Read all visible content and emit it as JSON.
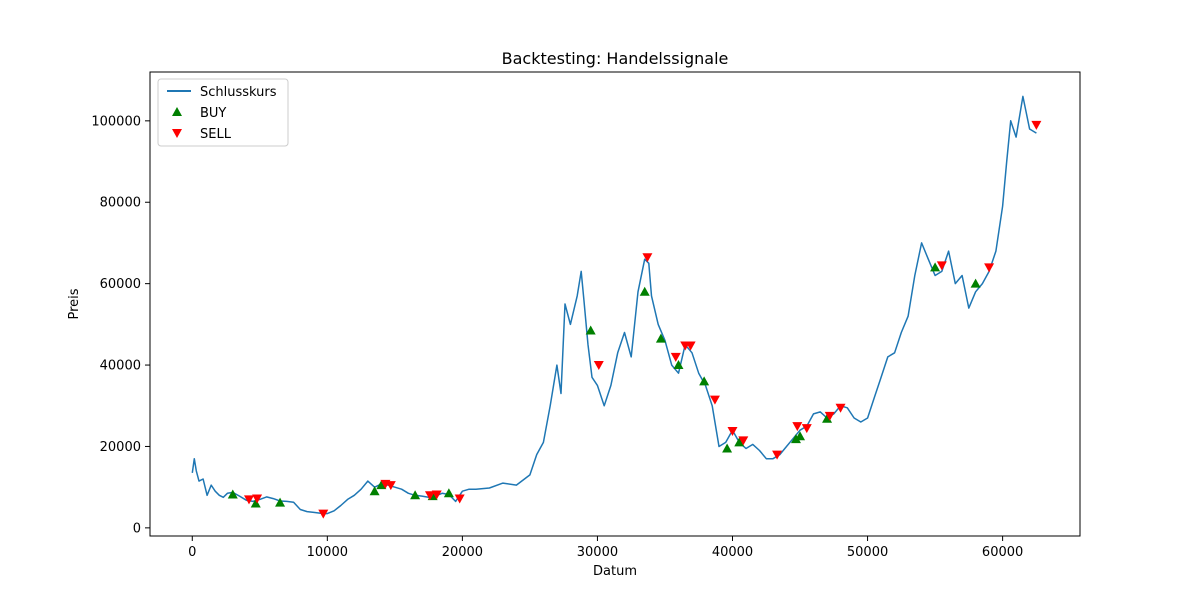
{
  "chart_data": {
    "type": "line",
    "title": "Backtesting: Handelssignale",
    "xlabel": "Datum",
    "ylabel": "Preis",
    "xlim": [
      -3130,
      65730
    ],
    "ylim": [
      -2000,
      112000
    ],
    "xticks": [
      0,
      10000,
      20000,
      30000,
      40000,
      50000,
      60000
    ],
    "yticks": [
      0,
      20000,
      40000,
      60000,
      80000,
      100000
    ],
    "grid": false,
    "legend": "top-left",
    "colors": {
      "line": "#1f77b4",
      "buy": "#008000",
      "sell": "#ff0000"
    },
    "series": [
      {
        "name": "Schlusskurs",
        "kind": "line",
        "points": [
          [
            0,
            13500
          ],
          [
            150,
            17000
          ],
          [
            300,
            14000
          ],
          [
            500,
            11500
          ],
          [
            800,
            12000
          ],
          [
            1100,
            8000
          ],
          [
            1400,
            10500
          ],
          [
            1700,
            9000
          ],
          [
            2000,
            8000
          ],
          [
            2300,
            7500
          ],
          [
            2600,
            8500
          ],
          [
            3000,
            8700
          ],
          [
            3500,
            7800
          ],
          [
            4000,
            6800
          ],
          [
            4500,
            6500
          ],
          [
            5000,
            7000
          ],
          [
            5500,
            7600
          ],
          [
            6000,
            7200
          ],
          [
            6500,
            6600
          ],
          [
            7000,
            6500
          ],
          [
            7500,
            6300
          ],
          [
            8000,
            4500
          ],
          [
            8500,
            4000
          ],
          [
            9000,
            3800
          ],
          [
            9500,
            3600
          ],
          [
            10000,
            3500
          ],
          [
            10500,
            4200
          ],
          [
            11000,
            5500
          ],
          [
            11500,
            7000
          ],
          [
            12000,
            8000
          ],
          [
            12500,
            9500
          ],
          [
            13000,
            11500
          ],
          [
            13500,
            10000
          ],
          [
            14000,
            10800
          ],
          [
            14500,
            10500
          ],
          [
            15000,
            10000
          ],
          [
            15500,
            9500
          ],
          [
            16000,
            8500
          ],
          [
            16500,
            8000
          ],
          [
            17000,
            7800
          ],
          [
            17500,
            7500
          ],
          [
            18000,
            7800
          ],
          [
            18500,
            8500
          ],
          [
            19000,
            8200
          ],
          [
            19500,
            6500
          ],
          [
            20000,
            9000
          ],
          [
            20500,
            9500
          ],
          [
            21000,
            9500
          ],
          [
            22000,
            9800
          ],
          [
            23000,
            11000
          ],
          [
            24000,
            10500
          ],
          [
            25000,
            13000
          ],
          [
            25500,
            18000
          ],
          [
            26000,
            21000
          ],
          [
            26500,
            30000
          ],
          [
            27000,
            40000
          ],
          [
            27300,
            33000
          ],
          [
            27600,
            55000
          ],
          [
            28000,
            50000
          ],
          [
            28500,
            57000
          ],
          [
            28800,
            63000
          ],
          [
            29000,
            56000
          ],
          [
            29300,
            45000
          ],
          [
            29600,
            37000
          ],
          [
            30000,
            35000
          ],
          [
            30500,
            30000
          ],
          [
            31000,
            35000
          ],
          [
            31500,
            43000
          ],
          [
            32000,
            48000
          ],
          [
            32500,
            42000
          ],
          [
            33000,
            58000
          ],
          [
            33500,
            66000
          ],
          [
            33800,
            65000
          ],
          [
            34000,
            57000
          ],
          [
            34500,
            50000
          ],
          [
            35000,
            46000
          ],
          [
            35500,
            40000
          ],
          [
            36000,
            38000
          ],
          [
            36500,
            45000
          ],
          [
            37000,
            43000
          ],
          [
            37500,
            38000
          ],
          [
            38000,
            35000
          ],
          [
            38500,
            30000
          ],
          [
            39000,
            20000
          ],
          [
            39500,
            21000
          ],
          [
            40000,
            24000
          ],
          [
            40500,
            21000
          ],
          [
            41000,
            19500
          ],
          [
            41500,
            20500
          ],
          [
            42000,
            19000
          ],
          [
            42500,
            17000
          ],
          [
            43000,
            17000
          ],
          [
            43500,
            18000
          ],
          [
            44000,
            20000
          ],
          [
            44500,
            22000
          ],
          [
            45000,
            24000
          ],
          [
            45500,
            25000
          ],
          [
            46000,
            28000
          ],
          [
            46500,
            28500
          ],
          [
            47000,
            27000
          ],
          [
            47500,
            28000
          ],
          [
            48000,
            30000
          ],
          [
            48500,
            29500
          ],
          [
            49000,
            27000
          ],
          [
            49500,
            26000
          ],
          [
            50000,
            27000
          ],
          [
            50500,
            32000
          ],
          [
            51000,
            37000
          ],
          [
            51500,
            42000
          ],
          [
            52000,
            43000
          ],
          [
            52500,
            48000
          ],
          [
            53000,
            52000
          ],
          [
            53500,
            62000
          ],
          [
            54000,
            70000
          ],
          [
            54500,
            66000
          ],
          [
            55000,
            62000
          ],
          [
            55500,
            63000
          ],
          [
            56000,
            68000
          ],
          [
            56500,
            60000
          ],
          [
            57000,
            62000
          ],
          [
            57500,
            54000
          ],
          [
            58000,
            58000
          ],
          [
            58500,
            60000
          ],
          [
            59000,
            63000
          ],
          [
            59500,
            68000
          ],
          [
            60000,
            79000
          ],
          [
            60300,
            90000
          ],
          [
            60600,
            100000
          ],
          [
            61000,
            96000
          ],
          [
            61500,
            106000
          ],
          [
            62000,
            98000
          ],
          [
            62500,
            97000
          ]
        ]
      },
      {
        "name": "BUY",
        "kind": "marker-up",
        "points": [
          [
            3000,
            8200
          ],
          [
            4700,
            6000
          ],
          [
            6500,
            6200
          ],
          [
            13500,
            9000
          ],
          [
            14000,
            10500
          ],
          [
            16500,
            8000
          ],
          [
            17800,
            7800
          ],
          [
            19000,
            8500
          ],
          [
            29500,
            48500
          ],
          [
            33500,
            58000
          ],
          [
            34700,
            46500
          ],
          [
            36000,
            40000
          ],
          [
            37900,
            36000
          ],
          [
            39600,
            19500
          ],
          [
            40500,
            21000
          ],
          [
            44700,
            21800
          ],
          [
            45000,
            22500
          ],
          [
            47000,
            26800
          ],
          [
            55000,
            64000
          ],
          [
            58000,
            60000
          ]
        ]
      },
      {
        "name": "SELL",
        "kind": "marker-down",
        "points": [
          [
            4200,
            7000
          ],
          [
            4800,
            7200
          ],
          [
            9700,
            3500
          ],
          [
            14300,
            10800
          ],
          [
            14700,
            10500
          ],
          [
            17600,
            8000
          ],
          [
            18100,
            8200
          ],
          [
            19800,
            7200
          ],
          [
            30100,
            40000
          ],
          [
            33700,
            66500
          ],
          [
            35800,
            42000
          ],
          [
            36500,
            44800
          ],
          [
            36900,
            44800
          ],
          [
            38700,
            31500
          ],
          [
            40000,
            23800
          ],
          [
            40800,
            21500
          ],
          [
            43300,
            18000
          ],
          [
            44800,
            25000
          ],
          [
            45500,
            24500
          ],
          [
            47200,
            27500
          ],
          [
            48000,
            29500
          ],
          [
            55500,
            64500
          ],
          [
            59000,
            64000
          ],
          [
            62500,
            99000
          ]
        ]
      }
    ]
  }
}
